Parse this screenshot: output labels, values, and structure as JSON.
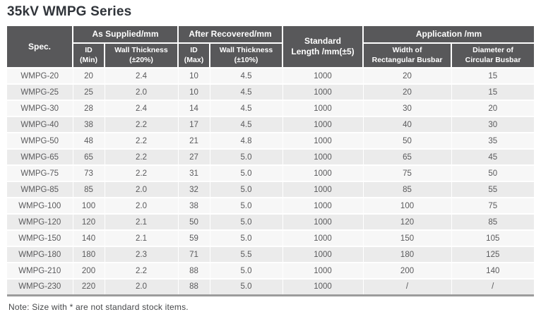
{
  "title": "35kV WMPG Series",
  "note": "Note: Size with * are not standard stock items.",
  "colors": {
    "header_bg": "#58585a",
    "header_text": "#ffffff",
    "row_light": "#f7f7f7",
    "row_dark": "#ebebeb",
    "data_text": "#5a5a5c",
    "title_text": "#30343a",
    "bottom_border": "#9c9c9c"
  },
  "table": {
    "headers": {
      "spec": "Spec.",
      "as_supplied": "As Supplied/mm",
      "after_recovered": "After Recovered/mm",
      "standard_length": "Standard\nLength /mm(±5)",
      "application": "Application /mm",
      "id_min": "ID\n(Min)",
      "wall_thickness_20": "Wall Thickness\n(±20%)",
      "id_max": "ID\n(Max)",
      "wall_thickness_10": "Wall Thickness\n(±10%)",
      "width_rect_busbar": "Width of\nRectangular Busbar",
      "dia_circ_busbar": "Diameter of\nCircular Busbar"
    },
    "rows": [
      [
        "WMPG-20",
        "20",
        "2.4",
        "10",
        "4.5",
        "1000",
        "20",
        "15"
      ],
      [
        "WMPG-25",
        "25",
        "2.0",
        "10",
        "4.5",
        "1000",
        "20",
        "15"
      ],
      [
        "WMPG-30",
        "28",
        "2.4",
        "14",
        "4.5",
        "1000",
        "30",
        "20"
      ],
      [
        "WMPG-40",
        "38",
        "2.2",
        "17",
        "4.5",
        "1000",
        "40",
        "30"
      ],
      [
        "WMPG-50",
        "48",
        "2.2",
        "21",
        "4.8",
        "1000",
        "50",
        "35"
      ],
      [
        "WMPG-65",
        "65",
        "2.2",
        "27",
        "5.0",
        "1000",
        "65",
        "45"
      ],
      [
        "WMPG-75",
        "73",
        "2.2",
        "31",
        "5.0",
        "1000",
        "75",
        "50"
      ],
      [
        "WMPG-85",
        "85",
        "2.0",
        "32",
        "5.0",
        "1000",
        "85",
        "55"
      ],
      [
        "WMPG-100",
        "100",
        "2.0",
        "38",
        "5.0",
        "1000",
        "100",
        "75"
      ],
      [
        "WMPG-120",
        "120",
        "2.1",
        "50",
        "5.0",
        "1000",
        "120",
        "85"
      ],
      [
        "WMPG-150",
        "140",
        "2.1",
        "59",
        "5.0",
        "1000",
        "150",
        "105"
      ],
      [
        "WMPG-180",
        "180",
        "2.3",
        "71",
        "5.5",
        "1000",
        "180",
        "125"
      ],
      [
        "WMPG-210",
        "200",
        "2.2",
        "88",
        "5.0",
        "1000",
        "200",
        "140"
      ],
      [
        "WMPG-230",
        "220",
        "2.0",
        "88",
        "5.0",
        "1000",
        "/",
        "/"
      ]
    ]
  }
}
